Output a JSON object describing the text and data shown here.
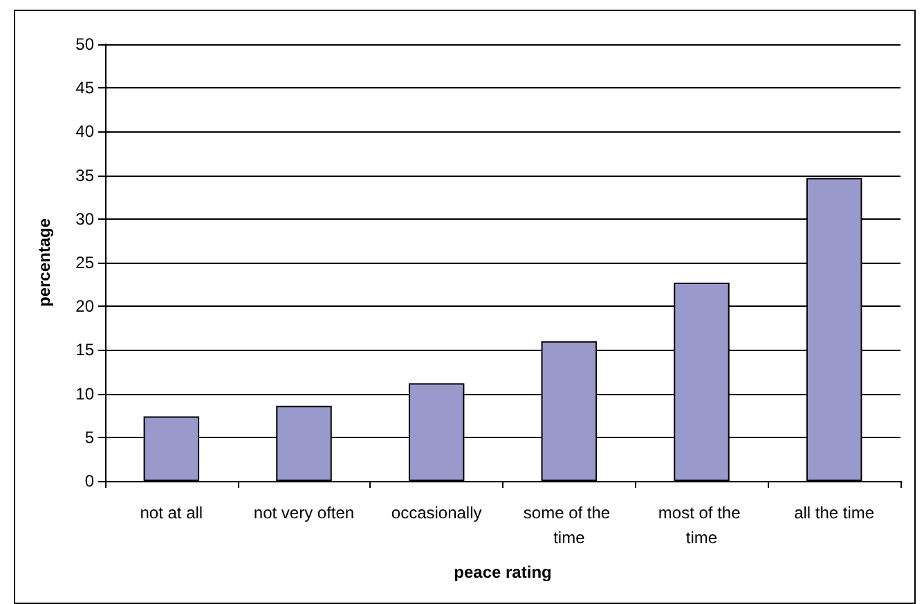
{
  "chart_data": {
    "type": "bar",
    "xlabel": "peace rating",
    "ylabel": "percentage",
    "categories": [
      "not at all",
      "not very often",
      "occasionally",
      "some of the time",
      "most of the time",
      "all the time"
    ],
    "values": [
      7.4,
      8.6,
      11.2,
      16.0,
      22.7,
      34.7
    ],
    "color": "#9999cc",
    "ylim": [
      0,
      50
    ],
    "yticks": [
      0,
      5,
      10,
      15,
      20,
      25,
      30,
      35,
      40,
      45,
      50
    ],
    "grid": "y"
  }
}
